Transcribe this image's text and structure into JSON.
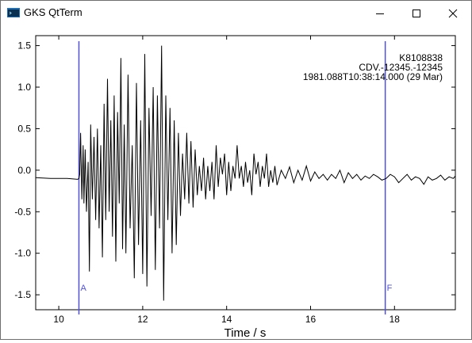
{
  "window": {
    "title": "GKS QtTerm",
    "icon": "terminal-app-icon",
    "controls": [
      "minimize-icon",
      "maximize-icon",
      "close-icon"
    ]
  },
  "plot": {
    "info_lines": [
      "K8108838",
      "CDV.-12345.-12345",
      "1981.088T10:38:14.000 (29 Mar)"
    ],
    "picks": [
      {
        "label": "A",
        "time": 10.48
      },
      {
        "label": "F",
        "time": 17.78
      }
    ],
    "pick_color": "#5050e0",
    "trace_color": "#000000"
  },
  "chart_data": {
    "type": "line",
    "xlabel": "Time / s",
    "ylabel": "",
    "xlim": [
      9.45,
      19.45
    ],
    "ylim": [
      -1.68,
      1.62
    ],
    "xticks": [
      10,
      12,
      14,
      16,
      18
    ],
    "yticks": [
      -1.5,
      -1.0,
      -0.5,
      0.0,
      0.5,
      1.0,
      1.5
    ],
    "ytick_labels": [
      "-1.5",
      "-1.0",
      "-0.5",
      "0.0",
      "0.5",
      "1.0",
      "1.5"
    ],
    "grid": false,
    "series": [
      {
        "x": [
          9.45,
          9.8,
          10.0,
          10.2,
          10.45,
          10.48,
          10.5,
          10.52,
          10.55,
          10.58,
          10.6,
          10.63,
          10.66,
          10.7,
          10.73,
          10.76,
          10.8,
          10.84,
          10.88,
          10.92,
          10.96,
          11.0,
          11.04,
          11.08,
          11.12,
          11.16,
          11.2,
          11.24,
          11.28,
          11.32,
          11.36,
          11.4,
          11.44,
          11.48,
          11.52,
          11.56,
          11.6,
          11.65,
          11.7,
          11.75,
          11.8,
          11.85,
          11.9,
          11.95,
          12.0,
          12.05,
          12.1,
          12.15,
          12.2,
          12.25,
          12.3,
          12.35,
          12.4,
          12.45,
          12.5,
          12.55,
          12.6,
          12.65,
          12.7,
          12.75,
          12.8,
          12.85,
          12.9,
          12.95,
          13.0,
          13.05,
          13.1,
          13.15,
          13.2,
          13.25,
          13.3,
          13.35,
          13.4,
          13.45,
          13.5,
          13.55,
          13.6,
          13.65,
          13.7,
          13.75,
          13.8,
          13.85,
          13.9,
          13.95,
          14.0,
          14.05,
          14.1,
          14.15,
          14.2,
          14.25,
          14.3,
          14.35,
          14.4,
          14.45,
          14.5,
          14.55,
          14.6,
          14.65,
          14.7,
          14.75,
          14.8,
          14.85,
          14.9,
          14.95,
          15.0,
          15.05,
          15.1,
          15.15,
          15.2,
          15.3,
          15.4,
          15.5,
          15.6,
          15.7,
          15.8,
          15.9,
          16.0,
          16.1,
          16.2,
          16.3,
          16.4,
          16.5,
          16.6,
          16.7,
          16.8,
          16.9,
          17.0,
          17.1,
          17.2,
          17.3,
          17.4,
          17.5,
          17.6,
          17.7,
          17.8,
          17.9,
          18.0,
          18.1,
          18.2,
          18.3,
          18.4,
          18.5,
          18.6,
          18.7,
          18.8,
          18.9,
          19.0,
          19.1,
          19.2,
          19.3,
          19.4,
          19.45
        ],
        "y": [
          -0.09,
          -0.1,
          -0.1,
          -0.1,
          -0.11,
          -0.1,
          -0.05,
          0.45,
          -0.35,
          0.3,
          -0.4,
          0.25,
          -0.5,
          0.1,
          -1.22,
          0.55,
          -0.35,
          0.4,
          -0.6,
          0.5,
          -0.7,
          0.3,
          -1.05,
          0.8,
          -0.6,
          1.1,
          -0.5,
          0.6,
          -0.8,
          0.9,
          -1.1,
          0.7,
          -0.4,
          1.35,
          -0.95,
          0.55,
          -1.0,
          1.15,
          -0.7,
          0.3,
          -1.3,
          1.05,
          -0.9,
          0.6,
          -1.25,
          1.4,
          -1.4,
          0.75,
          -0.55,
          1.0,
          -1.2,
          0.9,
          -0.7,
          1.5,
          -1.57,
          0.9,
          -0.6,
          0.75,
          -1.0,
          0.6,
          -0.9,
          0.45,
          -0.55,
          0.2,
          -0.35,
          0.45,
          -0.4,
          0.35,
          -0.45,
          0.25,
          -0.3,
          0.05,
          -0.25,
          0.15,
          -0.35,
          0.05,
          -0.25,
          0.1,
          -0.35,
          0.3,
          -0.2,
          0.15,
          -0.05,
          0.2,
          -0.3,
          0.1,
          -0.25,
          0.05,
          -0.1,
          0.3,
          -0.1,
          0.05,
          -0.2,
          0.1,
          -0.15,
          0.0,
          -0.3,
          0.2,
          -0.05,
          0.1,
          -0.2,
          0.05,
          -0.1,
          0.2,
          -0.2,
          0.0,
          -0.15,
          0.05,
          -0.18,
          0.0,
          -0.1,
          0.04,
          -0.15,
          0.0,
          -0.12,
          0.05,
          -0.13,
          -0.02,
          -0.1,
          -0.05,
          -0.12,
          -0.05,
          -0.1,
          0.0,
          -0.15,
          -0.03,
          -0.1,
          -0.05,
          -0.12,
          -0.07,
          -0.1,
          -0.05,
          -0.08,
          -0.12,
          -0.1,
          -0.05,
          -0.08,
          -0.15,
          -0.1,
          -0.05,
          -0.12,
          -0.08,
          -0.1,
          -0.17,
          -0.08,
          -0.12,
          -0.1,
          -0.06,
          -0.12,
          -0.08,
          -0.1,
          -0.07
        ]
      }
    ]
  }
}
